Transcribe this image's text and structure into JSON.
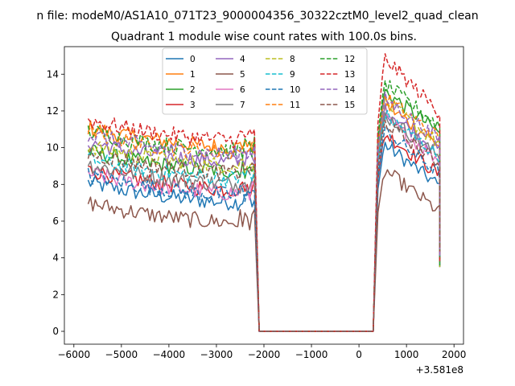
{
  "chart_data": {
    "type": "line",
    "suptitle": "n file: modeM0/AS1A10_071T23_9000004356_30322cztM0_level2_quad_clean",
    "title": "Quadrant 1 module wise count rates with 100.0s bins.",
    "xlabel": "",
    "ylabel": "",
    "x_offset_label": "+3.581e8",
    "xlim": [
      -6200,
      2200
    ],
    "ylim": [
      -0.7,
      15.5
    ],
    "x_ticks": [
      -6000,
      -5000,
      -4000,
      -3000,
      -2000,
      -1000,
      0,
      1000,
      2000
    ],
    "x_tick_labels": [
      "−6000",
      "−5000",
      "−4000",
      "−3000",
      "−2000",
      "−1000",
      "0",
      "1000",
      "2000"
    ],
    "y_ticks": [
      0,
      2,
      4,
      6,
      8,
      10,
      12,
      14
    ],
    "y_tick_labels": [
      "0",
      "2",
      "4",
      "6",
      "8",
      "10",
      "12",
      "14"
    ],
    "grid": false,
    "legend_position": "top-center",
    "series": [
      {
        "name": "0",
        "color": "#1f77b4",
        "dash": "solid",
        "pre": 7.0,
        "post": 8.6
      },
      {
        "name": "1",
        "color": "#ff7f0e",
        "dash": "solid",
        "pre": 10.0,
        "post": 10.8
      },
      {
        "name": "2",
        "color": "#2ca02c",
        "dash": "solid",
        "pre": 8.7,
        "post": 11.5
      },
      {
        "name": "3",
        "color": "#d62728",
        "dash": "solid",
        "pre": 7.7,
        "post": 9.2
      },
      {
        "name": "4",
        "color": "#9467bd",
        "dash": "solid",
        "pre": 9.2,
        "post": 10.5
      },
      {
        "name": "5",
        "color": "#8c564b",
        "dash": "solid",
        "pre": 5.9,
        "post": 7.2
      },
      {
        "name": "6",
        "color": "#e377c2",
        "dash": "solid",
        "pre": 7.5,
        "post": 10.0
      },
      {
        "name": "7",
        "color": "#7f7f7f",
        "dash": "solid",
        "pre": 8.0,
        "post": 10.2
      },
      {
        "name": "8",
        "color": "#bcbd22",
        "dash": "dashed",
        "pre": 9.0,
        "post": 10.9
      },
      {
        "name": "9",
        "color": "#17becf",
        "dash": "dashed",
        "pre": 8.3,
        "post": 10.2
      },
      {
        "name": "10",
        "color": "#1f77b4",
        "dash": "dashed",
        "pre": 7.4,
        "post": 9.3
      },
      {
        "name": "11",
        "color": "#ff7f0e",
        "dash": "dashed",
        "pre": 9.7,
        "post": 11.2
      },
      {
        "name": "12",
        "color": "#2ca02c",
        "dash": "dashed",
        "pre": 9.8,
        "post": 11.9
      },
      {
        "name": "13",
        "color": "#d62728",
        "dash": "dashed",
        "pre": 10.4,
        "post": 12.6
      },
      {
        "name": "14",
        "color": "#9467bd",
        "dash": "dashed",
        "pre": 9.6,
        "post": 11.1
      },
      {
        "name": "15",
        "color": "#8c564b",
        "dash": "dashed",
        "pre": 8.6,
        "post": 9.8
      }
    ],
    "segments": {
      "pre_start": -5700,
      "pre_end": -2200,
      "gap_start": -2100,
      "gap_end": 300,
      "post_start": 400,
      "post_end": 1700,
      "step": 50
    }
  }
}
